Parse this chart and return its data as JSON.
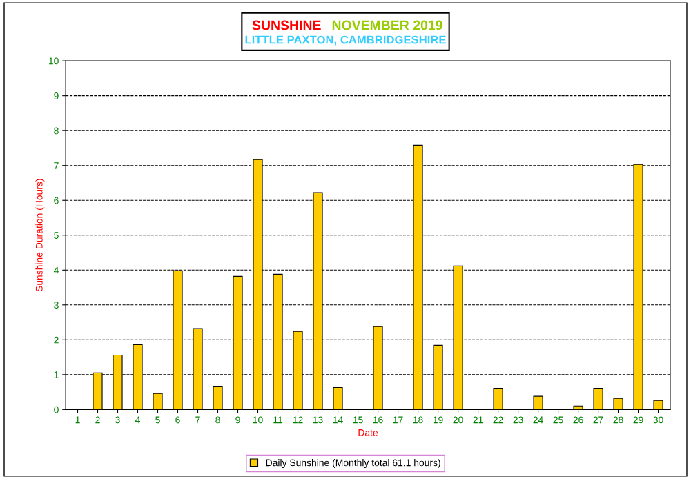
{
  "chart_data": {
    "type": "bar",
    "title": "SUNSHINE",
    "subtitle": "NOVEMBER 2019",
    "annotations": [
      "LITTLE PAXTON, CAMBRIDGESHIRE"
    ],
    "xlabel": "Date",
    "ylabel": "Sunshine Duration (Hours)",
    "categories": [
      "1",
      "2",
      "3",
      "4",
      "5",
      "6",
      "7",
      "8",
      "9",
      "10",
      "11",
      "12",
      "13",
      "14",
      "15",
      "16",
      "17",
      "18",
      "19",
      "20",
      "21",
      "22",
      "23",
      "24",
      "25",
      "26",
      "27",
      "28",
      "29",
      "30"
    ],
    "series": [
      {
        "name": "Daily Sunshine (Monthly total 61.1 hours)",
        "color": "#ffcc00",
        "values": [
          0.0,
          1.05,
          1.56,
          1.86,
          0.46,
          3.98,
          2.32,
          0.67,
          3.82,
          7.17,
          3.88,
          2.24,
          6.22,
          0.63,
          0.0,
          2.38,
          0.0,
          7.58,
          1.84,
          4.12,
          0.0,
          0.61,
          0.0,
          0.38,
          0.0,
          0.1,
          0.61,
          0.32,
          7.03,
          0.26
        ]
      }
    ],
    "ylim": [
      0,
      10
    ],
    "yticks": [
      0,
      1,
      2,
      3,
      4,
      5,
      6,
      7,
      8,
      9,
      10
    ],
    "grid": "y",
    "legend": "bottom"
  }
}
